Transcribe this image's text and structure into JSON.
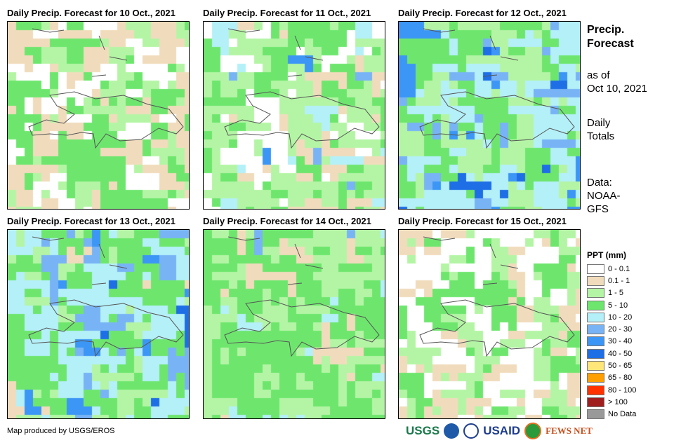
{
  "panels": [
    {
      "title": "Daily Precip. Forecast for 10 Oct., 2021"
    },
    {
      "title": "Daily Precip. Forecast for 11 Oct., 2021"
    },
    {
      "title": "Daily Precip. Forecast for 12 Oct., 2021"
    },
    {
      "title": "Daily Precip. Forecast for 13 Oct., 2021"
    },
    {
      "title": "Daily Precip. Forecast for 14 Oct., 2021"
    },
    {
      "title": "Daily Precip. Forecast for 15 Oct., 2021"
    }
  ],
  "side": {
    "title1": "Precip.",
    "title2": "Forecast",
    "asof1": "as of",
    "asof2": "Oct 10, 2021",
    "daily1": "Daily",
    "daily2": "Totals",
    "data1": "Data:",
    "data2": "NOAA-",
    "data3": "GFS"
  },
  "legend": {
    "title": "PPT (mm)",
    "items": [
      {
        "label": "0 - 0.1",
        "color": "#ffffff"
      },
      {
        "label": "0.1 - 1",
        "color": "#f0dcbc"
      },
      {
        "label": "1 - 5",
        "color": "#b4f5a5"
      },
      {
        "label": "5 - 10",
        "color": "#6ee66e"
      },
      {
        "label": "10 - 20",
        "color": "#b4f0f8"
      },
      {
        "label": "20 - 30",
        "color": "#78b4f5"
      },
      {
        "label": "30 - 40",
        "color": "#3c96f5"
      },
      {
        "label": "40 - 50",
        "color": "#1e6ee6"
      },
      {
        "label": "50 - 65",
        "color": "#ffe678"
      },
      {
        "label": "65 - 80",
        "color": "#ffa000"
      },
      {
        "label": "80 - 100",
        "color": "#ff3200"
      },
      {
        "label": "> 100",
        "color": "#a01e1e"
      },
      {
        "label": "No Data",
        "color": "#999999"
      }
    ]
  },
  "credit": "Map produced by USGS/EROS",
  "logos": {
    "usgs": "USGS",
    "usaid": "USAID",
    "fews": "FEWS NET"
  }
}
